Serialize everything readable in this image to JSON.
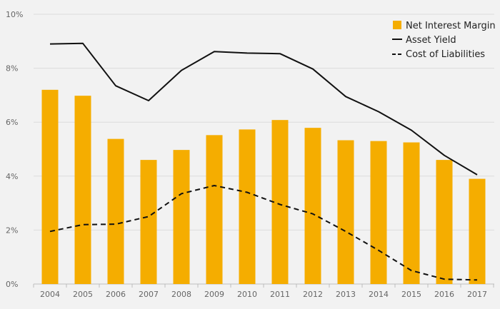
{
  "chart_data": {
    "type": "bar",
    "title": "",
    "xlabel": "",
    "ylabel": "",
    "ylim": [
      0,
      10
    ],
    "yticks": [
      "0%",
      "2%",
      "4%",
      "6%",
      "8%",
      "10%"
    ],
    "yticks_values": [
      0,
      2,
      4,
      6,
      8,
      10
    ],
    "categories": [
      "2004",
      "2005",
      "2006",
      "2007",
      "2008",
      "2009",
      "2010",
      "2011",
      "2012",
      "2013",
      "2014",
      "2015",
      "2016",
      "2017"
    ],
    "series": [
      {
        "name": "Net Interest Margin",
        "kind": "bar",
        "color": "#f5ad00",
        "values": [
          7.2,
          6.98,
          5.38,
          4.6,
          4.97,
          5.52,
          5.73,
          6.08,
          5.79,
          5.33,
          5.3,
          5.25,
          4.6,
          3.9
        ]
      },
      {
        "name": "Asset Yield",
        "kind": "line",
        "dash": "solid",
        "color": "#111111",
        "values": [
          8.9,
          8.92,
          7.35,
          6.8,
          7.92,
          8.62,
          8.56,
          8.54,
          7.97,
          6.95,
          6.39,
          5.7,
          4.77,
          4.05
        ]
      },
      {
        "name": "Cost of Liabilities",
        "kind": "line",
        "dash": "dashed",
        "color": "#111111",
        "values": [
          1.95,
          2.2,
          2.22,
          2.5,
          3.35,
          3.65,
          3.4,
          2.95,
          2.6,
          1.95,
          1.25,
          0.5,
          0.18,
          0.15
        ]
      }
    ],
    "legend_position": "top-right",
    "grid": true
  }
}
